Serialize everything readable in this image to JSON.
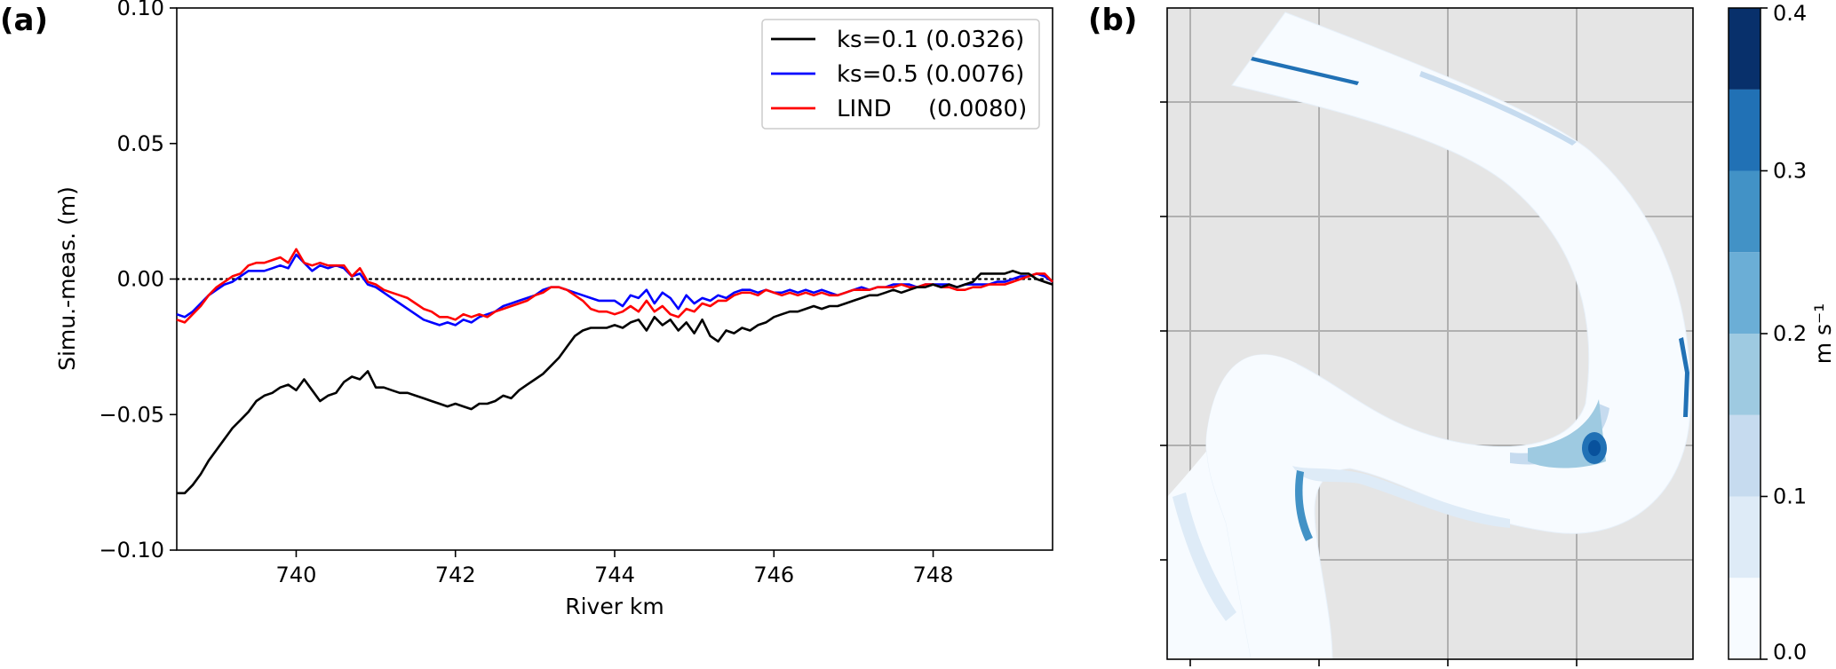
{
  "panel_a_label": "(a)",
  "panel_b_label": "(b)",
  "chart_data": [
    {
      "type": "line",
      "title": "",
      "xlabel": "River km",
      "ylabel": "Simu.-meas. (m)",
      "xlim": [
        738.5,
        749.5
      ],
      "ylim": [
        -0.1,
        0.1
      ],
      "xticks": [
        740,
        742,
        744,
        746,
        748
      ],
      "xtick_labels": [
        "740",
        "742",
        "744",
        "746",
        "748"
      ],
      "yticks": [
        -0.1,
        -0.05,
        0.0,
        0.05,
        0.1
      ],
      "ytick_labels": [
        "−0.10",
        "−0.05",
        "0.00",
        "0.05",
        "0.10"
      ],
      "reference_line": {
        "y": 0.0,
        "style": "dotted",
        "color": "#000000"
      },
      "legend_position": "top-right",
      "grid": false,
      "series": [
        {
          "name": "ks=0.1 (0.0326)",
          "color": "#000000",
          "x": [
            738.5,
            738.6,
            738.7,
            738.8,
            738.9,
            739.0,
            739.1,
            739.2,
            739.3,
            739.4,
            739.5,
            739.6,
            739.7,
            739.8,
            739.9,
            740.0,
            740.1,
            740.2,
            740.3,
            740.4,
            740.5,
            740.6,
            740.7,
            740.8,
            740.9,
            741.0,
            741.1,
            741.2,
            741.3,
            741.4,
            741.5,
            741.6,
            741.7,
            741.8,
            741.9,
            742.0,
            742.1,
            742.2,
            742.3,
            742.4,
            742.5,
            742.6,
            742.7,
            742.8,
            742.9,
            743.0,
            743.1,
            743.2,
            743.3,
            743.4,
            743.5,
            743.6,
            743.7,
            743.8,
            743.9,
            744.0,
            744.1,
            744.2,
            744.3,
            744.4,
            744.5,
            744.6,
            744.7,
            744.8,
            744.9,
            745.0,
            745.1,
            745.2,
            745.3,
            745.4,
            745.5,
            745.6,
            745.7,
            745.8,
            745.9,
            746.0,
            746.1,
            746.2,
            746.3,
            746.4,
            746.5,
            746.6,
            746.7,
            746.8,
            746.9,
            747.0,
            747.1,
            747.2,
            747.3,
            747.4,
            747.5,
            747.6,
            747.7,
            747.8,
            747.9,
            748.0,
            748.1,
            748.2,
            748.3,
            748.4,
            748.5,
            748.6,
            748.7,
            748.8,
            748.9,
            749.0,
            749.1,
            749.2,
            749.3,
            749.4,
            749.5
          ],
          "y": [
            -0.079,
            -0.079,
            -0.076,
            -0.072,
            -0.067,
            -0.063,
            -0.059,
            -0.055,
            -0.052,
            -0.049,
            -0.045,
            -0.043,
            -0.042,
            -0.04,
            -0.039,
            -0.041,
            -0.037,
            -0.041,
            -0.045,
            -0.043,
            -0.042,
            -0.038,
            -0.036,
            -0.037,
            -0.034,
            -0.04,
            -0.04,
            -0.041,
            -0.042,
            -0.042,
            -0.043,
            -0.044,
            -0.045,
            -0.046,
            -0.047,
            -0.046,
            -0.047,
            -0.048,
            -0.046,
            -0.046,
            -0.045,
            -0.043,
            -0.044,
            -0.041,
            -0.039,
            -0.037,
            -0.035,
            -0.032,
            -0.029,
            -0.025,
            -0.021,
            -0.019,
            -0.018,
            -0.018,
            -0.018,
            -0.017,
            -0.018,
            -0.016,
            -0.015,
            -0.019,
            -0.014,
            -0.017,
            -0.015,
            -0.019,
            -0.016,
            -0.02,
            -0.015,
            -0.021,
            -0.023,
            -0.019,
            -0.02,
            -0.018,
            -0.019,
            -0.017,
            -0.016,
            -0.014,
            -0.013,
            -0.012,
            -0.012,
            -0.011,
            -0.01,
            -0.011,
            -0.01,
            -0.01,
            -0.009,
            -0.008,
            -0.007,
            -0.006,
            -0.006,
            -0.005,
            -0.004,
            -0.005,
            -0.004,
            -0.003,
            -0.003,
            -0.002,
            -0.003,
            -0.002,
            -0.003,
            -0.002,
            -0.001,
            0.002,
            0.002,
            0.002,
            0.002,
            0.003,
            0.002,
            0.002,
            0.0,
            -0.001,
            -0.002
          ],
          "y_full": [
            -0.079,
            -0.079,
            -0.076,
            -0.072,
            -0.067,
            -0.063,
            -0.059,
            -0.055,
            -0.052,
            -0.049,
            -0.045,
            -0.043,
            -0.042,
            -0.04,
            -0.039,
            -0.041,
            -0.037,
            -0.041,
            -0.045,
            -0.043,
            -0.042,
            -0.038,
            -0.036,
            -0.037,
            -0.034,
            -0.04,
            -0.04,
            -0.041,
            -0.042,
            -0.042,
            -0.043,
            -0.044,
            -0.045,
            -0.046,
            -0.047,
            -0.046,
            -0.047,
            -0.048,
            -0.046,
            -0.046,
            -0.045,
            -0.043,
            -0.044,
            -0.041,
            -0.039,
            -0.037,
            -0.035,
            -0.032,
            -0.029,
            -0.025,
            -0.021,
            -0.019,
            -0.018,
            -0.018,
            -0.018,
            -0.017,
            -0.018,
            -0.016,
            -0.015,
            -0.019,
            -0.014,
            -0.017,
            -0.015,
            -0.019,
            -0.016,
            -0.02,
            -0.015,
            -0.021,
            -0.023,
            -0.019,
            -0.02,
            -0.018,
            -0.019,
            -0.017,
            -0.016,
            -0.014,
            -0.013,
            -0.012,
            -0.012,
            -0.011,
            -0.01,
            -0.011,
            -0.01,
            -0.01,
            -0.009,
            -0.008,
            -0.007,
            -0.006,
            -0.006,
            -0.005,
            -0.004,
            -0.005,
            -0.004,
            -0.003,
            -0.003,
            -0.002,
            -0.003,
            -0.002,
            -0.003,
            -0.002,
            -0.001,
            0.002,
            0.002,
            0.002,
            0.002,
            0.003,
            0.002,
            0.002,
            0.0,
            -0.001,
            -0.002
          ]
        },
        {
          "name": "ks=0.5 (0.0076)",
          "color": "#0000ff",
          "x": [
            738.5,
            738.6,
            738.7,
            738.8,
            738.9,
            739.0,
            739.1,
            739.2,
            739.3,
            739.4,
            739.5,
            739.6,
            739.7,
            739.8,
            739.9,
            740.0,
            740.1,
            740.2,
            740.3,
            740.4,
            740.5,
            740.6,
            740.7,
            740.8,
            740.9,
            741.0,
            741.1,
            741.2,
            741.3,
            741.4,
            741.5,
            741.6,
            741.7,
            741.8,
            741.9,
            742.0,
            742.1,
            742.2,
            742.3,
            742.4,
            742.5,
            742.6,
            742.7,
            742.8,
            742.9,
            743.0,
            743.1,
            743.2,
            743.3,
            743.4,
            743.5,
            743.6,
            743.7,
            743.8,
            743.9,
            744.0,
            744.1,
            744.2,
            744.3,
            744.4,
            744.5,
            744.6,
            744.7,
            744.8,
            744.9,
            745.0,
            745.1,
            745.2,
            745.3,
            745.4,
            745.5,
            745.6,
            745.7,
            745.8,
            745.9,
            746.0,
            746.1,
            746.2,
            746.3,
            746.4,
            746.5,
            746.6,
            746.7,
            746.8,
            746.9,
            747.0,
            747.1,
            747.2,
            747.3,
            747.4,
            747.5,
            747.6,
            747.7,
            747.8,
            747.9,
            748.0,
            748.1,
            748.2,
            748.3,
            748.4,
            748.5,
            748.6,
            748.7,
            748.8,
            748.9,
            749.0,
            749.1,
            749.2,
            749.3,
            749.4,
            749.5
          ],
          "y": [
            -0.013,
            -0.014,
            -0.012,
            -0.009,
            -0.006,
            -0.004,
            -0.002,
            -0.001,
            0.001,
            0.003,
            0.003,
            0.003,
            0.004,
            0.005,
            0.004,
            0.009,
            0.006,
            0.003,
            0.005,
            0.004,
            0.005,
            0.004,
            0.001,
            0.002,
            -0.002,
            -0.003,
            -0.005,
            -0.007,
            -0.009,
            -0.011,
            -0.013,
            -0.015,
            -0.016,
            -0.017,
            -0.016,
            -0.017,
            -0.015,
            -0.016,
            -0.014,
            -0.013,
            -0.012,
            -0.01,
            -0.009,
            -0.008,
            -0.007,
            -0.006,
            -0.004,
            -0.003,
            -0.003,
            -0.004,
            -0.005,
            -0.006,
            -0.007,
            -0.008,
            -0.008,
            -0.008,
            -0.01,
            -0.006,
            -0.007,
            -0.004,
            -0.009,
            -0.005,
            -0.007,
            -0.011,
            -0.006,
            -0.009,
            -0.007,
            -0.008,
            -0.006,
            -0.007,
            -0.005,
            -0.004,
            -0.004,
            -0.005,
            -0.004,
            -0.005,
            -0.005,
            -0.004,
            -0.005,
            -0.004,
            -0.005,
            -0.004,
            -0.005,
            -0.006,
            -0.005,
            -0.004,
            -0.003,
            -0.004,
            -0.003,
            -0.003,
            -0.002,
            -0.002,
            -0.002,
            -0.003,
            -0.002,
            -0.002,
            -0.002,
            -0.002,
            -0.003,
            -0.002,
            -0.002,
            -0.002,
            -0.002,
            -0.001,
            -0.001,
            0.0,
            0.001,
            0.001,
            0.002,
            0.001,
            -0.001
          ]
        },
        {
          "name": "LIND     (0.0080)",
          "color": "#ff0000",
          "x": [
            738.5,
            738.6,
            738.7,
            738.8,
            738.9,
            739.0,
            739.1,
            739.2,
            739.3,
            739.4,
            739.5,
            739.6,
            739.7,
            739.8,
            739.9,
            740.0,
            740.1,
            740.2,
            740.3,
            740.4,
            740.5,
            740.6,
            740.7,
            740.8,
            740.9,
            741.0,
            741.1,
            741.2,
            741.3,
            741.4,
            741.5,
            741.6,
            741.7,
            741.8,
            741.9,
            742.0,
            742.1,
            742.2,
            742.3,
            742.4,
            742.5,
            742.6,
            742.7,
            742.8,
            742.9,
            743.0,
            743.1,
            743.2,
            743.3,
            743.4,
            743.5,
            743.6,
            743.7,
            743.8,
            743.9,
            744.0,
            744.1,
            744.2,
            744.3,
            744.4,
            744.5,
            744.6,
            744.7,
            744.8,
            744.9,
            745.0,
            745.1,
            745.2,
            745.3,
            745.4,
            745.5,
            745.6,
            745.7,
            745.8,
            745.9,
            746.0,
            746.1,
            746.2,
            746.3,
            746.4,
            746.5,
            746.6,
            746.7,
            746.8,
            746.9,
            747.0,
            747.1,
            747.2,
            747.3,
            747.4,
            747.5,
            747.6,
            747.7,
            747.8,
            747.9,
            748.0,
            748.1,
            748.2,
            748.3,
            748.4,
            748.5,
            748.6,
            748.7,
            748.8,
            748.9,
            749.0,
            749.1,
            749.2,
            749.3,
            749.4,
            749.5
          ],
          "y": [
            -0.015,
            -0.016,
            -0.013,
            -0.01,
            -0.006,
            -0.003,
            -0.001,
            0.001,
            0.002,
            0.005,
            0.006,
            0.006,
            0.007,
            0.008,
            0.006,
            0.011,
            0.006,
            0.005,
            0.006,
            0.005,
            0.005,
            0.005,
            0.001,
            0.004,
            -0.001,
            -0.002,
            -0.004,
            -0.005,
            -0.006,
            -0.007,
            -0.009,
            -0.011,
            -0.012,
            -0.014,
            -0.014,
            -0.015,
            -0.013,
            -0.014,
            -0.013,
            -0.014,
            -0.012,
            -0.011,
            -0.01,
            -0.009,
            -0.008,
            -0.006,
            -0.005,
            -0.003,
            -0.003,
            -0.004,
            -0.006,
            -0.008,
            -0.011,
            -0.012,
            -0.012,
            -0.013,
            -0.012,
            -0.01,
            -0.012,
            -0.008,
            -0.012,
            -0.01,
            -0.013,
            -0.014,
            -0.011,
            -0.012,
            -0.009,
            -0.01,
            -0.008,
            -0.008,
            -0.006,
            -0.005,
            -0.005,
            -0.006,
            -0.004,
            -0.005,
            -0.006,
            -0.005,
            -0.006,
            -0.005,
            -0.006,
            -0.005,
            -0.006,
            -0.006,
            -0.005,
            -0.004,
            -0.004,
            -0.004,
            -0.003,
            -0.003,
            -0.003,
            -0.002,
            -0.003,
            -0.003,
            -0.002,
            -0.002,
            -0.003,
            -0.003,
            -0.004,
            -0.004,
            -0.003,
            -0.003,
            -0.002,
            -0.002,
            -0.002,
            -0.001,
            0.0,
            0.001,
            0.002,
            0.002,
            -0.001
          ]
        }
      ]
    },
    {
      "type": "heatmap",
      "title": "",
      "colorbar": {
        "label": "m s⁻¹",
        "ticks": [
          0.0,
          0.1,
          0.2,
          0.3,
          0.4
        ],
        "tick_labels": [
          "0.0",
          "0.1",
          "0.2",
          "0.3",
          "0.4"
        ],
        "levels": [
          0.0,
          0.05,
          0.1,
          0.15,
          0.2,
          0.25,
          0.3,
          0.35,
          0.4
        ],
        "colors": [
          "#f7fbff",
          "#deebf7",
          "#c6dbef",
          "#9ecae1",
          "#6baed6",
          "#4292c6",
          "#2171b5",
          "#08519c"
        ],
        "top_color": "#08306b"
      },
      "background_color": "#e5e5e5",
      "grid": true,
      "tick_labels_shown": false
    }
  ]
}
